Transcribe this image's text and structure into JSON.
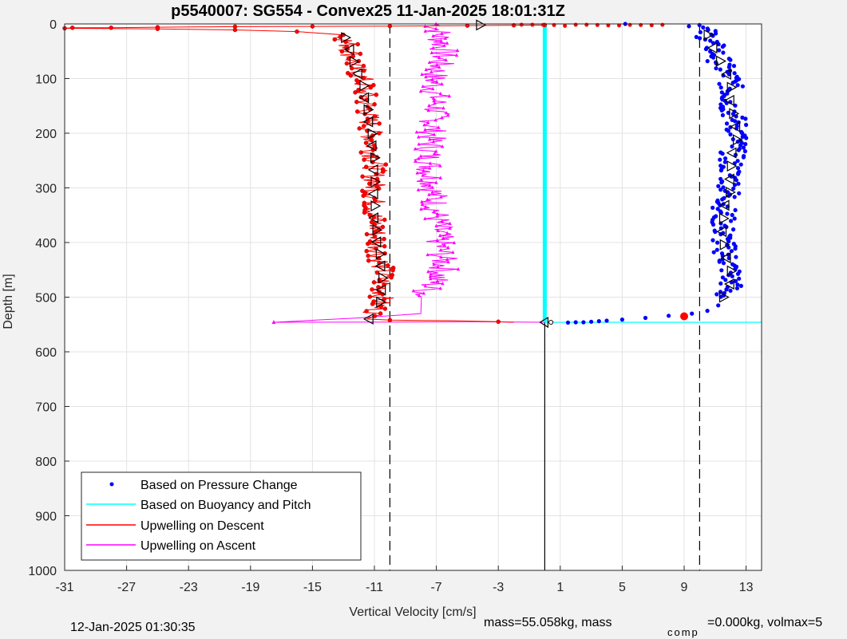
{
  "chart_data": {
    "type": "scatter",
    "title": "p5540007: SG554 - Convex25 11-Jan-2025 18:01:31Z",
    "xlabel": "Vertical Velocity [cm/s]",
    "ylabel": "Depth [m]",
    "xlim": [
      -31,
      14
    ],
    "ylim": [
      0,
      1000
    ],
    "y_reversed": true,
    "grid": true,
    "xticks": [
      "-31",
      "-27",
      "-23",
      "-19",
      "-15",
      "-11",
      "-7",
      "-3",
      "1",
      "5",
      "9",
      "13"
    ],
    "yticks": [
      "0",
      "100",
      "200",
      "300",
      "400",
      "500",
      "600",
      "700",
      "800",
      "900",
      "1000"
    ],
    "legend_position": "bottom-left",
    "legend": [
      {
        "label": "Based on Pressure Change",
        "color": "#0000ff",
        "marker": "dot"
      },
      {
        "label": "Based on Buoyancy and Pitch",
        "color": "#00ffff",
        "marker": "line"
      },
      {
        "label": "Upwelling on Descent",
        "color": "#ff0000",
        "marker": "line"
      },
      {
        "label": "Upwelling on Ascent",
        "color": "#ff00ff",
        "marker": "line"
      }
    ],
    "reference_lines": {
      "dashed_x": [
        -10,
        10
      ],
      "solid_x": 0,
      "solid_x_from_depth": 546,
      "cyan_horizontal_depth": 546,
      "cyan_vertical_x": 0,
      "cyan_vertical_depth": [
        0,
        546
      ]
    },
    "series": [
      {
        "name": "Based on Pressure Change",
        "color": "#0000ff",
        "x": [
          10,
          10.5,
          11,
          11.5,
          12,
          12,
          12.5,
          12,
          12,
          11.5,
          11.5,
          12,
          12,
          11.5,
          10,
          9,
          7,
          5,
          3,
          5.2
        ],
        "y": [
          2,
          20,
          50,
          80,
          100,
          150,
          200,
          250,
          300,
          350,
          400,
          450,
          480,
          500,
          525,
          533,
          538,
          542,
          546,
          0
        ]
      },
      {
        "name": "Based on Buoyancy and Pitch",
        "color": "#00ffff",
        "x": [
          0,
          0
        ],
        "y": [
          0,
          546
        ]
      },
      {
        "name": "Upwelling on Descent",
        "color": "#ff0000",
        "x": [
          0,
          -5,
          -15,
          -25,
          -30.5,
          -31,
          -20,
          -13,
          -12.5,
          -12.3,
          -11.8,
          -11.5,
          -11.2,
          -11,
          -11,
          -11,
          -10.8,
          -10.5,
          -10.5,
          -11,
          -11.5,
          -10,
          -5,
          -3
        ],
        "y": [
          2,
          3,
          4,
          5,
          7,
          8,
          12,
          20,
          50,
          80,
          100,
          150,
          200,
          250,
          300,
          350,
          400,
          450,
          500,
          530,
          540,
          542,
          545,
          546
        ]
      },
      {
        "name": "Upwelling on Ascent",
        "color": "#ff00ff",
        "x": [
          -7,
          -6.5,
          -7.2,
          -7,
          -7.3,
          -7.5,
          -7.2,
          -7,
          -6.8,
          -6.5,
          -8,
          -15,
          -17.5,
          -10,
          -5,
          0
        ],
        "y": [
          0,
          50,
          100,
          150,
          200,
          250,
          300,
          350,
          400,
          450,
          500,
          540,
          546,
          545,
          544,
          546
        ]
      }
    ]
  },
  "footer": {
    "date": "12-Jan-2025 01:30:35",
    "mass_text": "mass=55.058kg, mass",
    "comp_sub": "comp",
    "comp_text": "=0.000kg, volmax=5"
  }
}
